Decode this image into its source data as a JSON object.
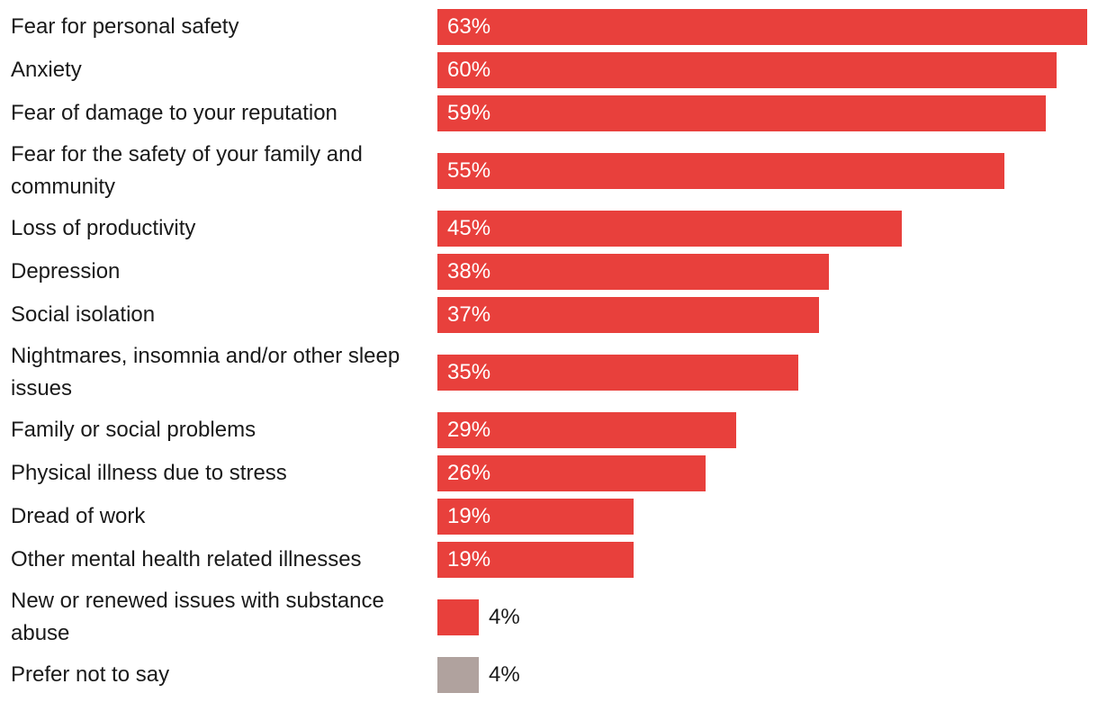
{
  "chart_data": {
    "type": "bar",
    "orientation": "horizontal",
    "categories": [
      "Fear for personal safety",
      "Anxiety",
      "Fear of damage to your reputation",
      "Fear for the safety of your family and community",
      "Loss of productivity",
      "Depression",
      "Social isolation",
      "Nightmares, insomnia and/or other sleep issues",
      "Family or social problems",
      "Physical illness due to stress",
      "Dread of work",
      "Other mental health related illnesses",
      "New or renewed issues with substance abuse",
      "Prefer not to say"
    ],
    "values": [
      63,
      60,
      59,
      55,
      45,
      38,
      37,
      35,
      29,
      26,
      19,
      19,
      4,
      4
    ],
    "value_labels": [
      "63%",
      "60%",
      "59%",
      "55%",
      "45%",
      "38%",
      "37%",
      "35%",
      "29%",
      "26%",
      "19%",
      "19%",
      "4%",
      "4%"
    ],
    "bar_colors": [
      "#e8403c",
      "#e8403c",
      "#e8403c",
      "#e8403c",
      "#e8403c",
      "#e8403c",
      "#e8403c",
      "#e8403c",
      "#e8403c",
      "#e8403c",
      "#e8403c",
      "#e8403c",
      "#e8403c",
      "#b0a29e"
    ],
    "title": "",
    "xlabel": "",
    "ylabel": "",
    "xlim": [
      0,
      63
    ],
    "grid": false,
    "legend": "none"
  }
}
